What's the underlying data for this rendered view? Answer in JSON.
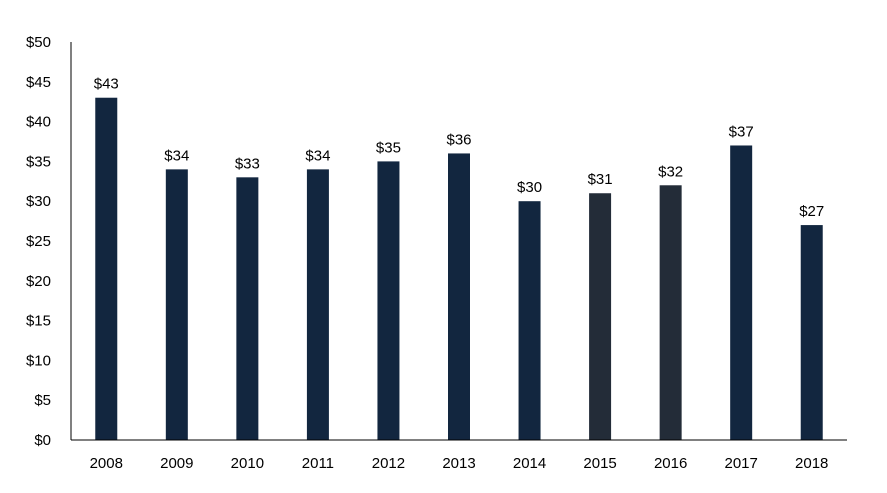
{
  "chart_data": {
    "type": "bar",
    "title": "",
    "xlabel": "",
    "ylabel": "",
    "categories": [
      "2008",
      "2009",
      "2010",
      "2011",
      "2012",
      "2013",
      "2014",
      "2015",
      "2016",
      "2017",
      "2018"
    ],
    "values": [
      43,
      34,
      33,
      34,
      35,
      36,
      30,
      31,
      32,
      37,
      27
    ],
    "data_labels": [
      "$43",
      "$34",
      "$33",
      "$34",
      "$35",
      "$36",
      "$30",
      "$31",
      "$32",
      "$37",
      "$27"
    ],
    "bar_colors": [
      "#12263f",
      "#12263f",
      "#12263f",
      "#12263f",
      "#12263f",
      "#12263f",
      "#12263f",
      "#232c38",
      "#232c38",
      "#12263f",
      "#12263f"
    ],
    "ylim": [
      0,
      50
    ],
    "y_ticks": [
      0,
      5,
      10,
      15,
      20,
      25,
      30,
      35,
      40,
      45,
      50
    ],
    "y_tick_labels": [
      "$0",
      "$5",
      "$10",
      "$15",
      "$20",
      "$25",
      "$30",
      "$35",
      "$40",
      "$45",
      "$50"
    ],
    "grid": false,
    "legend": "none",
    "axis_color": "#000000"
  }
}
